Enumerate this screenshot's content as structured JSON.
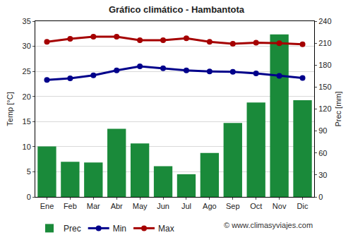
{
  "chart_data": {
    "type": "combo",
    "title": "Gráfico climático - Hambantota",
    "y_label": "Temp [°C]",
    "y2_label": "Prec [mm]",
    "categories": [
      "Ene",
      "Feb",
      "Mar",
      "Abr",
      "May",
      "Jun",
      "Jul",
      "Ago",
      "Sep",
      "Oct",
      "Nov",
      "Dic"
    ],
    "series": [
      {
        "name": "Prec",
        "type": "bar",
        "axis": "y2",
        "color": "#1a8a3a",
        "values": [
          69,
          48,
          47,
          93,
          73,
          42,
          31,
          60,
          101,
          129,
          222,
          132
        ]
      },
      {
        "name": "Min",
        "type": "line",
        "marker": "circle",
        "color": "#00008b",
        "values": [
          23.3,
          23.6,
          24.2,
          25.2,
          26.0,
          25.6,
          25.2,
          25.0,
          24.9,
          24.6,
          24.1,
          23.7
        ]
      },
      {
        "name": "Max",
        "type": "line",
        "marker": "circle",
        "color": "#a50000",
        "values": [
          30.9,
          31.5,
          31.9,
          31.9,
          31.2,
          31.2,
          31.6,
          30.9,
          30.5,
          30.7,
          30.6,
          30.4
        ]
      }
    ],
    "ylim": [
      0,
      35
    ],
    "yticks": [
      0,
      5,
      10,
      15,
      20,
      25,
      30,
      35
    ],
    "y2lim": [
      0,
      240
    ],
    "y2ticks": [
      0,
      30,
      60,
      90,
      120,
      150,
      180,
      210,
      240
    ],
    "grid": true,
    "legend": "bottom",
    "annotations": [
      "© www.climasyviajes.com"
    ]
  }
}
